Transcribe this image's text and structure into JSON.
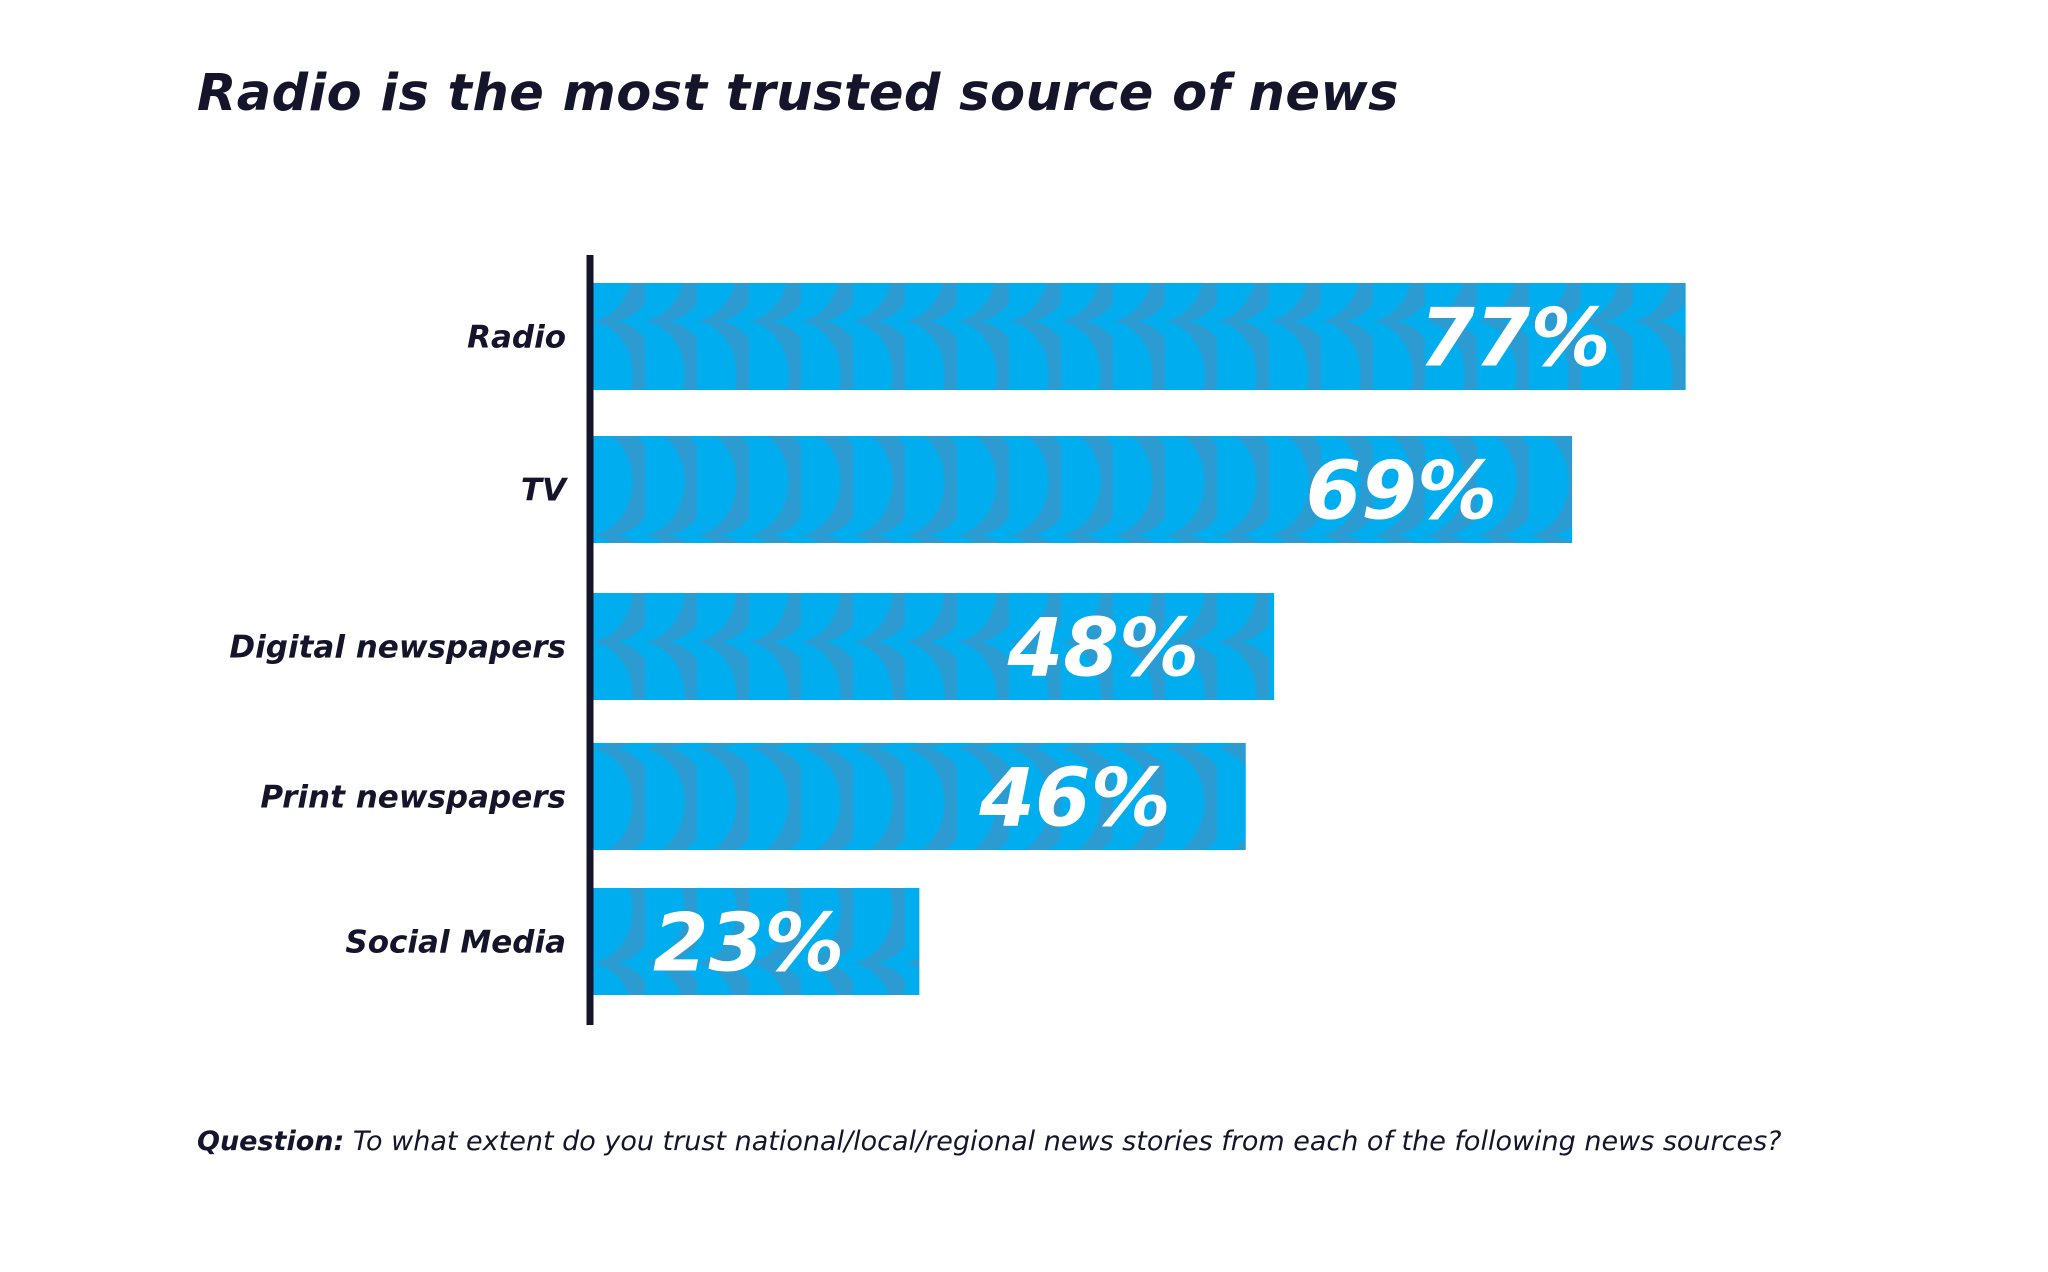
{
  "chart_data": {
    "type": "bar",
    "orientation": "horizontal",
    "title": "Radio is the most trusted source of news",
    "categories": [
      "Radio",
      "TV",
      "Digital newspapers",
      "Print newspapers",
      "Social Media"
    ],
    "values": [
      77,
      69,
      48,
      46,
      23
    ],
    "value_labels": [
      "77%",
      "69%",
      "48%",
      "46%",
      "23%"
    ],
    "unit": "%",
    "xlim": [
      0,
      100
    ],
    "grid": false,
    "legend": "none",
    "colors": {
      "bar": "#00adef",
      "bar_pattern": "#2b9bd1",
      "axis": "#14142b",
      "value_label": "#ffffff",
      "text": "#14142b"
    }
  },
  "footnote": {
    "label": "Question:",
    "text": " To what extent do you trust national/local/regional news stories from each of the following news sources?"
  }
}
